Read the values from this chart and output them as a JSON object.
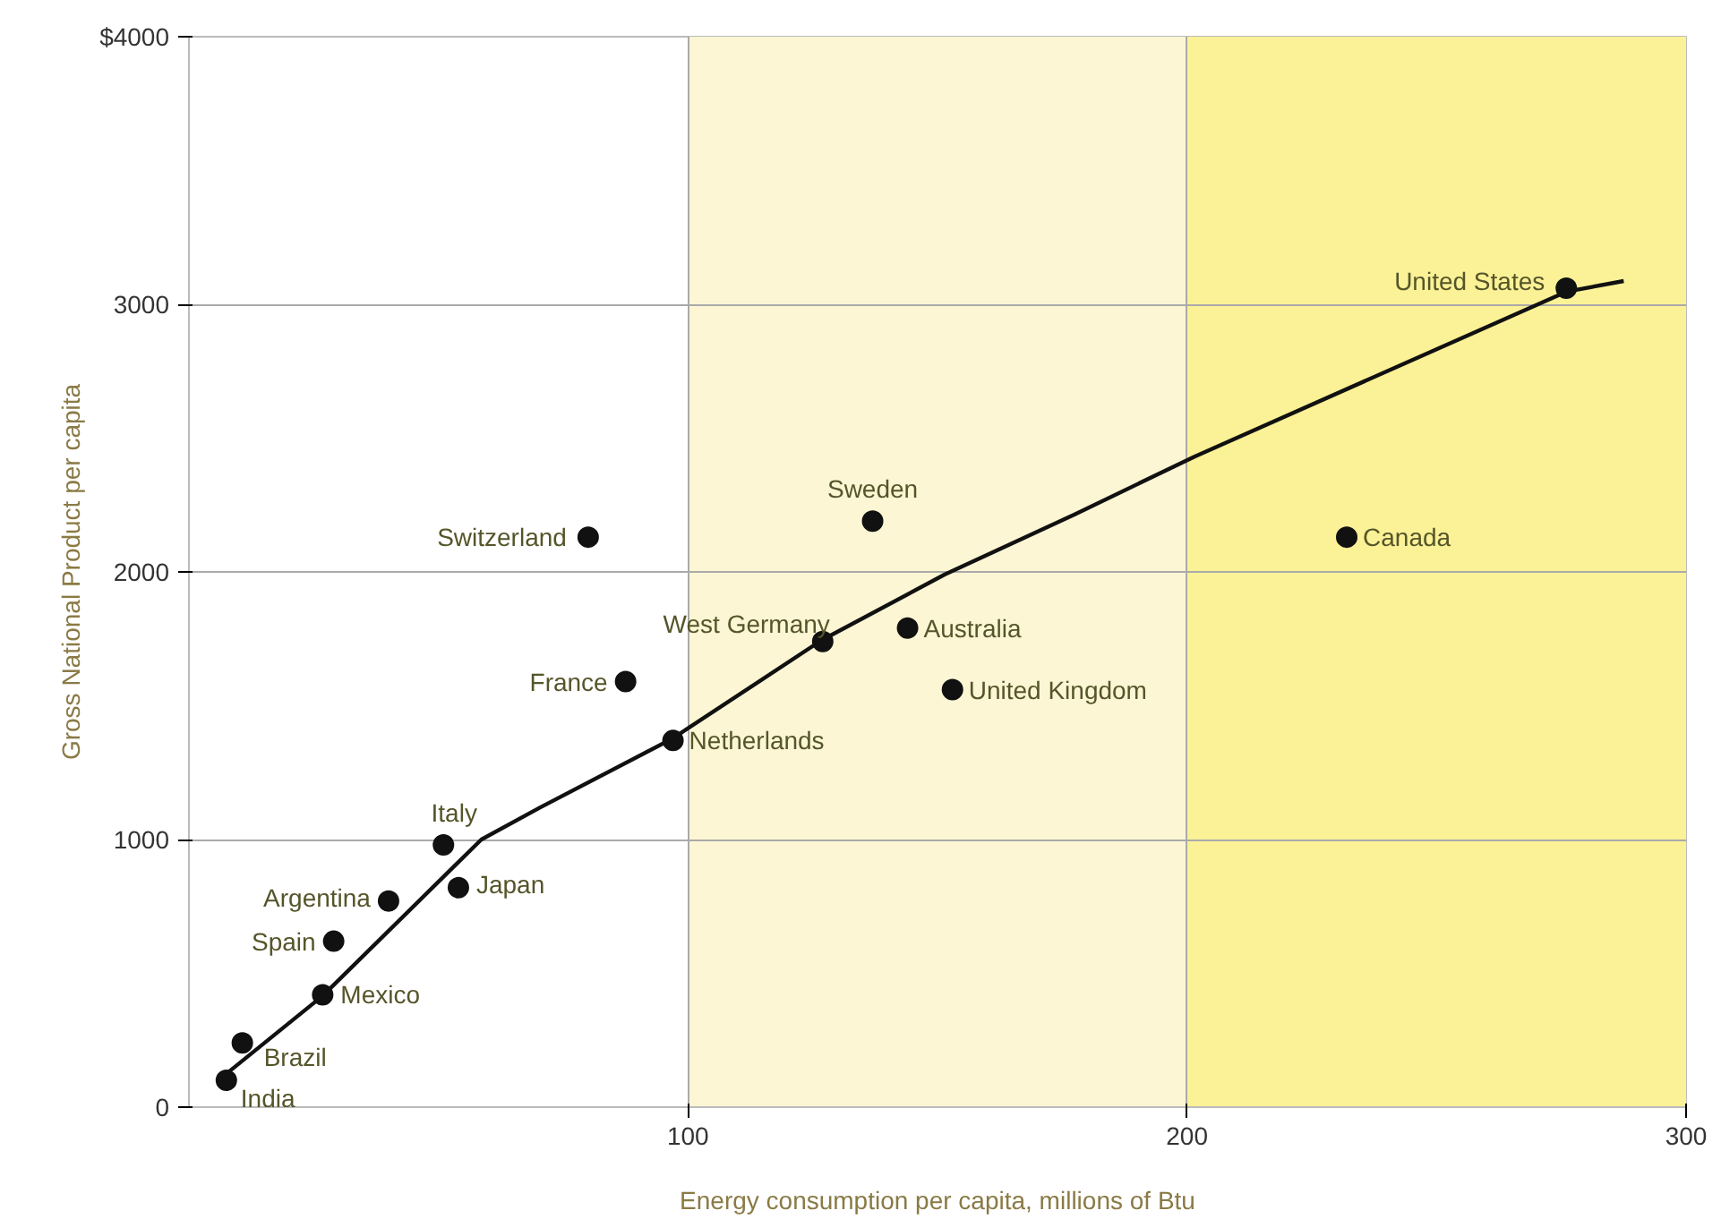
{
  "chart_data": {
    "type": "scatter",
    "xlabel": "Energy consumption per capita, millions of Btu",
    "ylabel": "Gross National Product per capita",
    "xlim": [
      0,
      300
    ],
    "xticks": [
      100,
      200,
      300
    ],
    "ylim": [
      0,
      4000
    ],
    "yticks": [
      0,
      1000,
      2000,
      3000,
      {
        "value": 4000,
        "label": "$4000"
      }
    ],
    "grid": true,
    "marker": "circle",
    "bands": [
      {
        "axis": "x",
        "from": 100,
        "to": 200,
        "color": "#fcf6d4"
      },
      {
        "axis": "x",
        "from": 200,
        "to": 300,
        "color": "#fbf196"
      }
    ],
    "series": [
      {
        "color": "#111111",
        "x": [
          7.5,
          10.7,
          26.8,
          29,
          40,
          54,
          51,
          87.5,
          80,
          97,
          127,
          137,
          144,
          153,
          232,
          276
        ],
        "values": [
          100,
          240,
          420,
          620,
          770,
          820,
          980,
          1590,
          2130,
          1370,
          1740,
          2190,
          1790,
          1560,
          2130,
          3060
        ]
      },
      {
        "type": "line",
        "color": "#111111",
        "line_style": "solid",
        "marker": "none",
        "x": [
          6.8,
          26.8,
          58.6,
          70.4,
          96.8,
          126.8,
          151.4,
          177.5,
          201.4,
          276,
          287.5
        ],
        "values": [
          114,
          416,
          1000,
          1120,
          1376,
          1745,
          1990,
          2215,
          2430,
          3047,
          3087
        ]
      }
    ],
    "annotations": [
      {
        "text": "India",
        "x": 7.5,
        "y": 100
      },
      {
        "text": "Brazil",
        "x": 10.7,
        "y": 240
      },
      {
        "text": "Mexico",
        "x": 26.8,
        "y": 420
      },
      {
        "text": "Spain",
        "x": 29,
        "y": 620
      },
      {
        "text": "Argentina",
        "x": 40,
        "y": 770
      },
      {
        "text": "Japan",
        "x": 54,
        "y": 820
      },
      {
        "text": "Italy",
        "x": 51,
        "y": 980
      },
      {
        "text": "France",
        "x": 87.5,
        "y": 1590
      },
      {
        "text": "Switzerland",
        "x": 80,
        "y": 2130
      },
      {
        "text": "Netherlands",
        "x": 97,
        "y": 1370
      },
      {
        "text": "West Germany",
        "x": 127,
        "y": 1740
      },
      {
        "text": "Sweden",
        "x": 137,
        "y": 2190
      },
      {
        "text": "Australia",
        "x": 144,
        "y": 1790
      },
      {
        "text": "United Kingdom",
        "x": 153,
        "y": 1560
      },
      {
        "text": "Canada",
        "x": 232,
        "y": 2130
      },
      {
        "text": "United States",
        "x": 276,
        "y": 3060
      }
    ]
  }
}
